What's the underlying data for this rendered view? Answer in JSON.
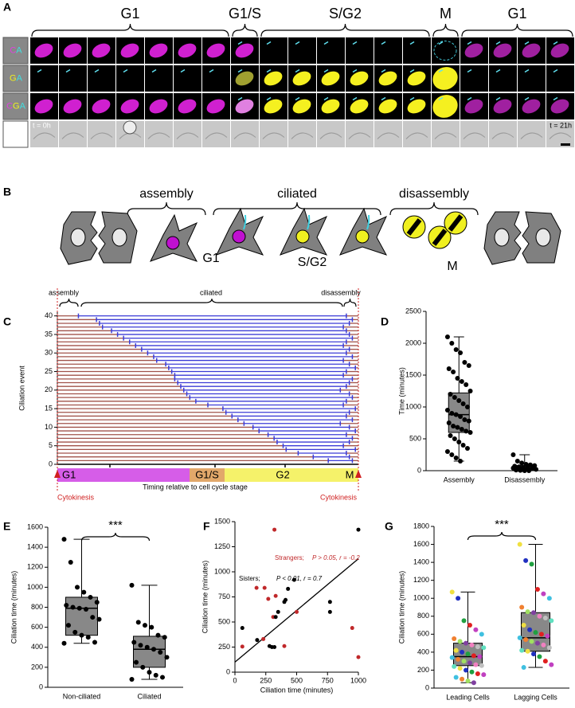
{
  "panel_labels": [
    "A",
    "B",
    "C",
    "D",
    "E",
    "F",
    "G"
  ],
  "panel_a": {
    "stages": [
      "G1",
      "G1/S",
      "S/G2",
      "M",
      "G1"
    ],
    "row_labels": [
      [
        "C",
        "A"
      ],
      [
        "G",
        "A"
      ],
      [
        "C",
        "G",
        "A"
      ]
    ],
    "time_start": "t = 0h",
    "time_end": "t = 21h"
  },
  "panel_b": {
    "phases": [
      "assembly",
      "ciliated",
      "disassembly"
    ],
    "stages": [
      "G1",
      "S/G2",
      "M"
    ]
  },
  "chart_data": [
    {
      "type": "timeline",
      "ylabel": "Ciliation event",
      "xlabel": "Timing relative to cell cycle stage",
      "phases": [
        "assembly",
        "ciliated",
        "disassembly"
      ],
      "stages": [
        "G1",
        "G1/S",
        "G2",
        "M"
      ],
      "markers": [
        "Cytokinesis",
        "Cytokinesis"
      ],
      "xlim": [
        0,
        1
      ],
      "ylim": [
        0,
        41
      ],
      "yticks": [
        0,
        5,
        10,
        15,
        20,
        25,
        30,
        35,
        40
      ],
      "colors": {
        "cycle": "#a0524a",
        "ciliated": "#3b3bd6",
        "marker": "#d02020"
      },
      "start": [
        0.9,
        0.85,
        0.8,
        0.76,
        0.75,
        0.73,
        0.72,
        0.7,
        0.67,
        0.65,
        0.62,
        0.6,
        0.58,
        0.56,
        0.55,
        0.5,
        0.46,
        0.44,
        0.43,
        0.42,
        0.41,
        0.4,
        0.39,
        0.39,
        0.38,
        0.37,
        0.36,
        0.33,
        0.32,
        0.3,
        0.28,
        0.26,
        0.24,
        0.22,
        0.2,
        0.18,
        0.15,
        0.14,
        0.13,
        0.07
      ],
      "end": [
        0.98,
        0.97,
        0.96,
        0.99,
        0.95,
        0.97,
        0.98,
        0.96,
        0.99,
        0.97,
        0.94,
        0.98,
        0.96,
        0.97,
        0.99,
        0.95,
        0.96,
        0.98,
        0.97,
        0.94,
        0.96,
        0.97,
        0.98,
        0.95,
        0.96,
        0.99,
        0.97,
        0.95,
        0.98,
        0.96,
        0.97,
        0.95,
        0.96,
        0.98,
        0.97,
        0.96,
        0.95,
        0.97,
        0.98,
        0.96
      ]
    },
    {
      "type": "box",
      "ylabel": "Time (minutes)",
      "categories": [
        "Assembly",
        "Disassembly"
      ],
      "ylim": [
        0,
        2500
      ],
      "yticks": [
        0,
        500,
        1000,
        1500,
        2000,
        2500
      ],
      "min": [
        150,
        0
      ],
      "q1": [
        600,
        10
      ],
      "median": [
        880,
        40
      ],
      "q3": [
        1220,
        80
      ],
      "max": [
        2100,
        250
      ],
      "box_color": "#888888",
      "point_color": "#000000",
      "points": [
        [
          2100,
          2000,
          1900,
          1850,
          1700,
          1650,
          1600,
          1550,
          1450,
          1400,
          1350,
          1250,
          1200,
          1150,
          1100,
          1050,
          1000,
          950,
          900,
          880,
          850,
          800,
          780,
          750,
          700,
          680,
          650,
          620,
          600,
          550,
          500,
          450,
          400,
          350,
          300,
          250,
          200,
          150
        ],
        [
          250,
          150,
          120,
          100,
          90,
          80,
          70,
          60,
          50,
          40,
          30,
          20,
          10,
          5,
          0,
          0,
          60,
          40,
          30,
          20
        ]
      ]
    },
    {
      "type": "box",
      "ylabel": "Ciliation time (minutes)",
      "categories": [
        "Non-ciliated",
        "Ciliated"
      ],
      "ylim": [
        0,
        1600
      ],
      "yticks": [
        0,
        200,
        400,
        600,
        800,
        1000,
        1200,
        1400,
        1600
      ],
      "min": [
        440,
        80
      ],
      "q1": [
        520,
        200
      ],
      "median": [
        790,
        380
      ],
      "q3": [
        900,
        510
      ],
      "max": [
        1480,
        1020
      ],
      "significance": "***",
      "box_color": "#888888",
      "point_color": "#000000",
      "points": [
        [
          1480,
          1250,
          1000,
          950,
          900,
          850,
          820,
          800,
          790,
          780,
          700,
          680,
          620,
          550,
          520,
          500,
          450,
          440
        ],
        [
          1020,
          650,
          620,
          600,
          520,
          500,
          450,
          420,
          400,
          380,
          350,
          300,
          250,
          200,
          150,
          120,
          100,
          80
        ]
      ]
    },
    {
      "type": "scatter",
      "xlabel": "Ciliation time (minutes)",
      "ylabel": "Ciliation time (minutes)",
      "xlim": [
        0,
        1000
      ],
      "ylim": [
        0,
        1500
      ],
      "xticks": [
        0,
        250,
        500,
        750,
        1000
      ],
      "yticks": [
        0,
        250,
        500,
        750,
        1000,
        1250,
        1500
      ],
      "series": [
        {
          "name": "Strangers;",
          "annotation": "P > 0.05, r = -0.2",
          "color": "#c0282a",
          "x": [
            60,
            175,
            230,
            240,
            270,
            320,
            330,
            310,
            400,
            500,
            950,
            1000
          ],
          "y": [
            255,
            840,
            330,
            840,
            730,
            1420,
            760,
            550,
            260,
            600,
            440,
            150
          ]
        },
        {
          "name": "Sisters;",
          "annotation": "P < 0.01, r = 0.7",
          "color": "#000000",
          "x": [
            60,
            180,
            280,
            300,
            320,
            330,
            350,
            400,
            410,
            430,
            480,
            770,
            770,
            1000
          ],
          "y": [
            440,
            320,
            260,
            250,
            250,
            550,
            600,
            700,
            720,
            830,
            920,
            700,
            600,
            1420
          ]
        }
      ],
      "fit": {
        "x": [
          0,
          1000
        ],
        "y": [
          100,
          1130
        ]
      }
    },
    {
      "type": "box",
      "ylabel": "Ciliation time (minutes)",
      "categories": [
        "Leading Cells",
        "Lagging Cells"
      ],
      "ylim": [
        0,
        1800
      ],
      "yticks": [
        0,
        200,
        400,
        600,
        800,
        1000,
        1200,
        1400,
        1600,
        1800
      ],
      "min": [
        60,
        230
      ],
      "q1": [
        250,
        410
      ],
      "median": [
        350,
        560
      ],
      "q3": [
        500,
        840
      ],
      "max": [
        1070,
        1600
      ],
      "significance": "***",
      "box_color": "#888888",
      "palette": [
        "#f0e040",
        "#2030c0",
        "#20a040",
        "#e02020",
        "#c040c0",
        "#40c0e0",
        "#f08030",
        "#a0e060",
        "#8040a0",
        "#f080c0",
        "#c0c0c0",
        "#60e0c0"
      ],
      "points": [
        [
          1070,
          1000,
          750,
          700,
          650,
          600,
          550,
          520,
          500,
          480,
          460,
          450,
          420,
          400,
          380,
          360,
          350,
          340,
          320,
          300,
          280,
          260,
          250,
          240,
          220,
          200,
          180,
          160,
          150,
          120,
          100,
          80,
          60
        ],
        [
          1600,
          1420,
          1380,
          1100,
          1050,
          1000,
          900,
          850,
          840,
          800,
          780,
          750,
          700,
          650,
          620,
          600,
          580,
          560,
          540,
          520,
          500,
          480,
          450,
          420,
          410,
          380,
          350,
          300,
          260,
          230
        ]
      ]
    }
  ]
}
